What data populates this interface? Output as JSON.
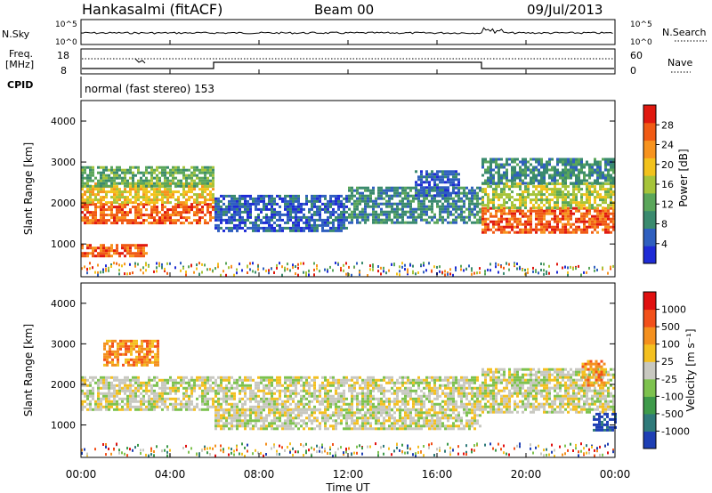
{
  "header": {
    "station": "Hankasalmi (fitACF)",
    "beam": "Beam 00",
    "date": "09/Jul/2013"
  },
  "sky_panel": {
    "left_label": "N.Sky",
    "right_label": "N.Search",
    "scale_top": "10^5",
    "scale_bottom": "10^0"
  },
  "freq_panel": {
    "left_label_line1": "Freq.",
    "left_label_line2": "[MHz]",
    "left_tick_top": "18",
    "left_tick_bottom": "8",
    "right_label": "Nave",
    "right_tick_top": "60",
    "right_tick_bottom": "0"
  },
  "cpid": {
    "label": "CPID",
    "mode_text": "normal (fast stereo) 153"
  },
  "power_panel": {
    "ylabel": "Slant Range [km]",
    "colorbar_label": "Power [dB]",
    "colorbar_ticks": [
      "4",
      "8",
      "12",
      "16",
      "20",
      "24",
      "28"
    ],
    "colorbar_colors": [
      "#1e2bd6",
      "#2f5fbf",
      "#3a8a6e",
      "#5aa65a",
      "#a6c43a",
      "#f2c21c",
      "#f7931e",
      "#f05a14",
      "#e0180f"
    ]
  },
  "velocity_panel": {
    "ylabel": "Slant Range [km]",
    "colorbar_label": "Velocity [m s⁻¹]",
    "colorbar_ticks": [
      "1000",
      "500",
      "100",
      "25",
      "-25",
      "-100",
      "-500",
      "-1000"
    ],
    "colorbar_colors": [
      "#1e3fb4",
      "#2f7a7a",
      "#3e9a4a",
      "#7dc24e",
      "#c8c8c0",
      "#f4c020",
      "#f4901e",
      "#f2501a",
      "#e01010"
    ]
  },
  "x_axis": {
    "label": "Time UT",
    "ticks": [
      "00:00",
      "04:00",
      "08:00",
      "12:00",
      "16:00",
      "20:00",
      "00:00"
    ]
  },
  "chart_data": {
    "type": "heatmap",
    "x_unit": "hours UT",
    "x_range": [
      0,
      24
    ],
    "y_range": [
      200,
      4500
    ],
    "y_ticks": [
      1000,
      2000,
      3000,
      4000
    ],
    "power_bands": [
      {
        "t0": 0,
        "t1": 6,
        "r0": 1500,
        "r1": 2000,
        "level": 7
      },
      {
        "t0": 0,
        "t1": 6,
        "r0": 2000,
        "r1": 2500,
        "level": 5
      },
      {
        "t0": 0,
        "t1": 6,
        "r0": 2400,
        "r1": 2900,
        "level": 3
      },
      {
        "t0": 0,
        "t1": 3,
        "r0": 700,
        "r1": 1000,
        "level": 7
      },
      {
        "t0": 6,
        "t1": 12,
        "r0": 1300,
        "r1": 2200,
        "level": 1
      },
      {
        "t0": 12,
        "t1": 18,
        "r0": 1500,
        "r1": 2400,
        "level": 2
      },
      {
        "t0": 15,
        "t1": 17,
        "r0": 2200,
        "r1": 2800,
        "level": 1
      },
      {
        "t0": 18,
        "t1": 24,
        "r0": 1300,
        "r1": 1900,
        "level": 7
      },
      {
        "t0": 18,
        "t1": 24,
        "r0": 1900,
        "r1": 2500,
        "level": 4
      },
      {
        "t0": 18,
        "t1": 24,
        "r0": 2500,
        "r1": 3100,
        "level": 2
      }
    ],
    "velocity_bands": [
      {
        "t0": 0,
        "t1": 18,
        "r0": 1400,
        "r1": 2200,
        "level": 4
      },
      {
        "t0": 6,
        "t1": 18,
        "r0": 900,
        "r1": 1400,
        "level": 4
      },
      {
        "t0": 1,
        "t1": 3.5,
        "r0": 2500,
        "r1": 3100,
        "level": 6
      },
      {
        "t0": 18,
        "t1": 24,
        "r0": 1300,
        "r1": 2400,
        "level": 4
      },
      {
        "t0": 23,
        "t1": 24,
        "r0": 900,
        "r1": 1300,
        "level": 0
      },
      {
        "t0": 22.5,
        "t1": 23.5,
        "r0": 2000,
        "r1": 2600,
        "level": 6
      }
    ]
  }
}
